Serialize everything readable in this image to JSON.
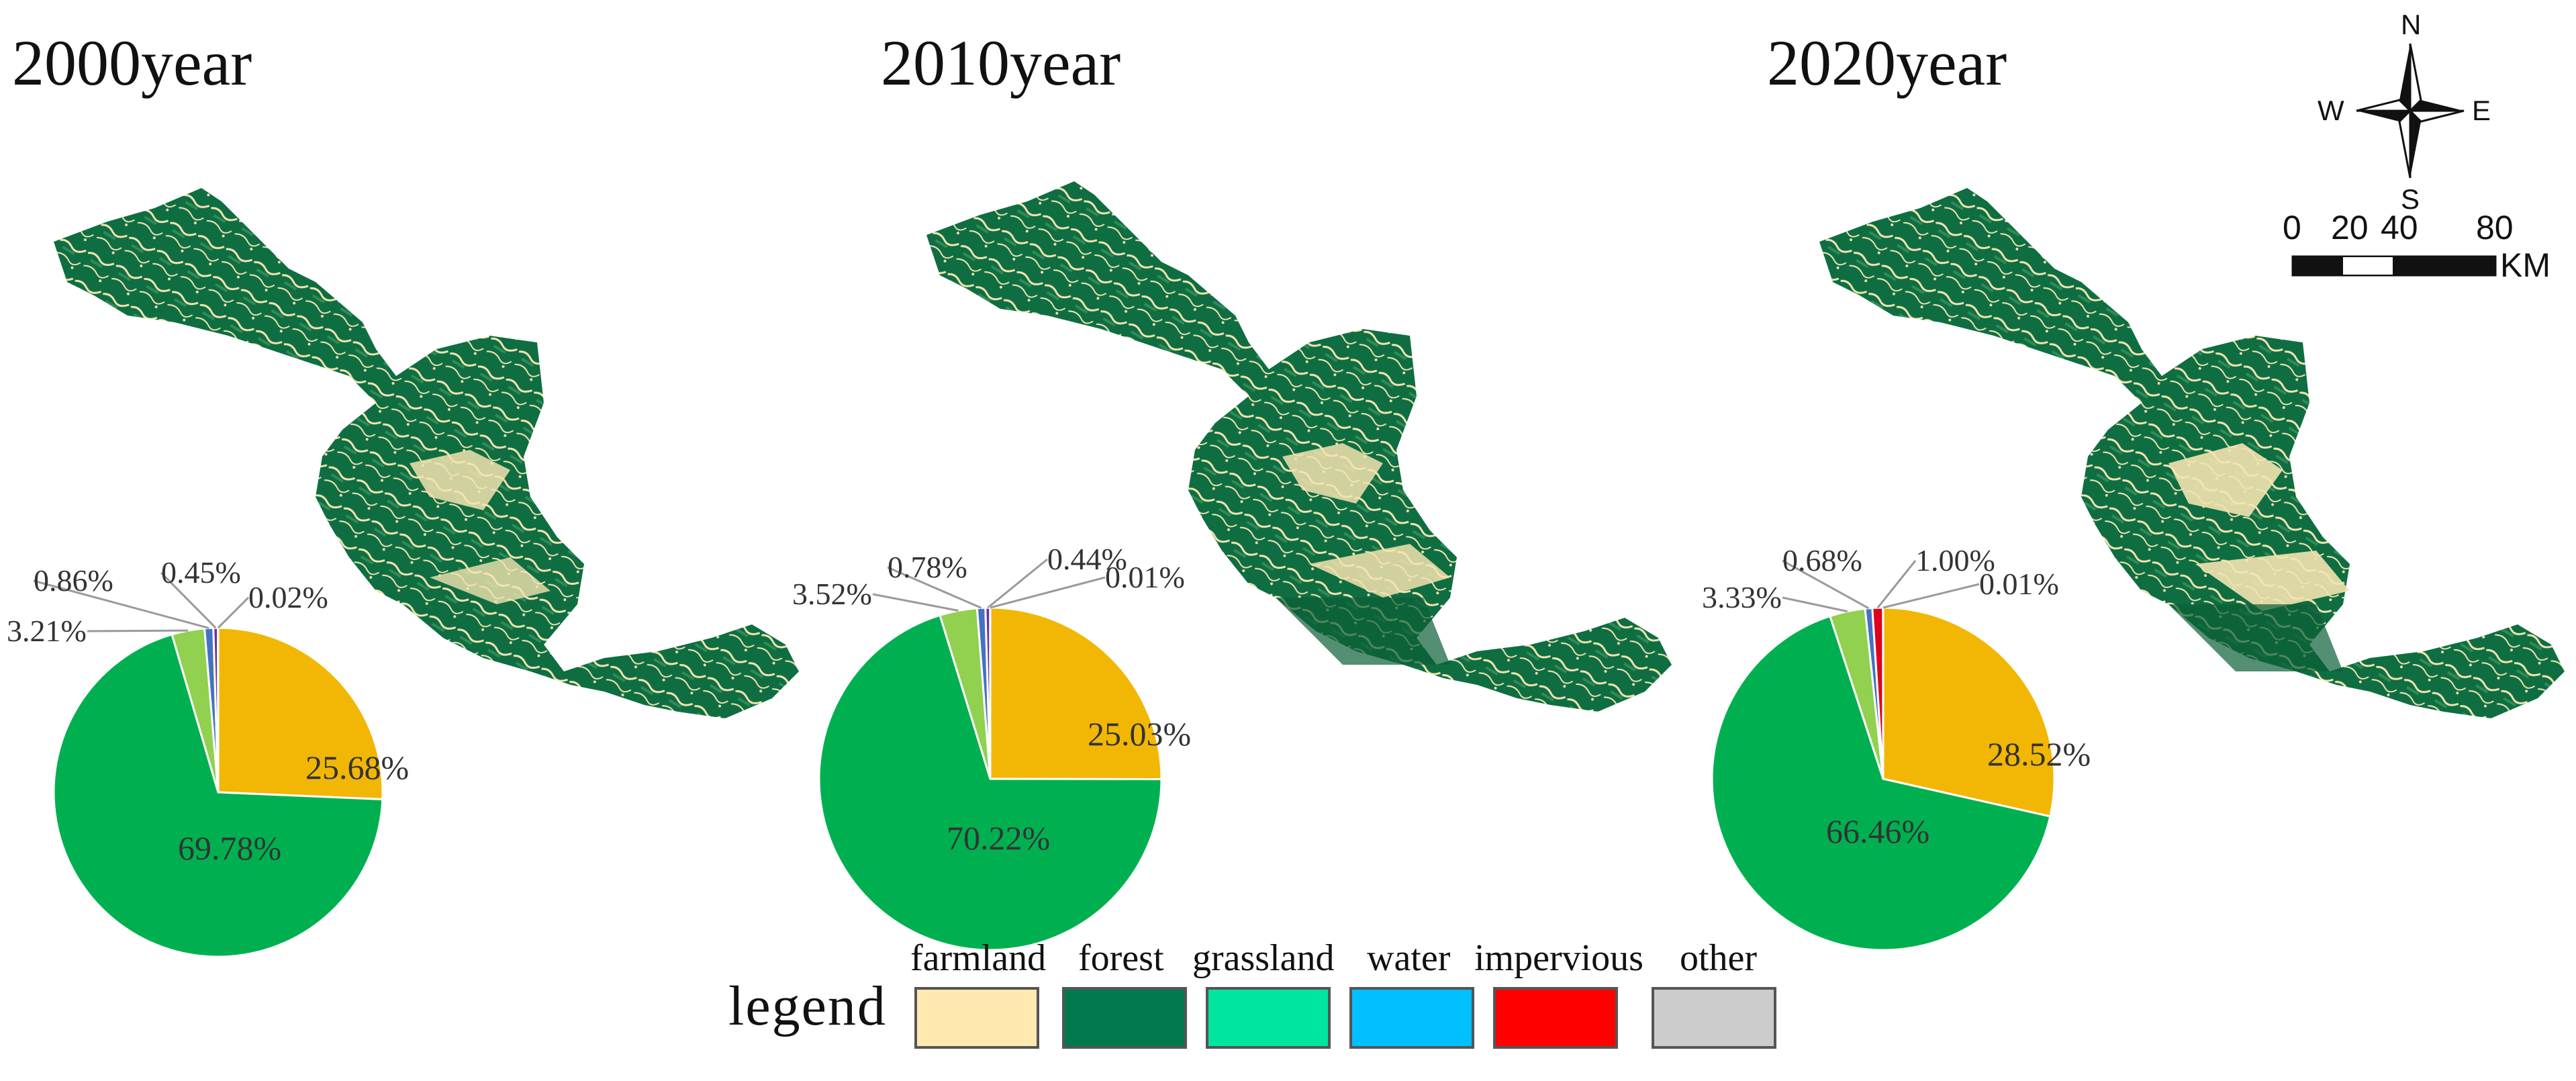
{
  "chart_data": [
    {
      "type": "pie",
      "title": "2000year",
      "slices": [
        {
          "category": "farmland",
          "value": 25.68,
          "label": "25.68%",
          "color": "#F2B705"
        },
        {
          "category": "forest",
          "value": 69.78,
          "label": "69.78%",
          "color": "#00B050"
        },
        {
          "category": "grassland",
          "value": 3.21,
          "label": "3.21%",
          "color": "#92D050"
        },
        {
          "category": "water",
          "value": 0.86,
          "label": "0.86%",
          "color": "#4472C4"
        },
        {
          "category": "impervious",
          "value": 0.45,
          "label": "0.45%",
          "color": "#7030A0"
        },
        {
          "category": "other",
          "value": 0.02,
          "label": "0.02%",
          "color": "#A5A5A5"
        }
      ]
    },
    {
      "type": "pie",
      "title": "2010year",
      "slices": [
        {
          "category": "farmland",
          "value": 25.03,
          "label": "25.03%",
          "color": "#F2B705"
        },
        {
          "category": "forest",
          "value": 70.22,
          "label": "70.22%",
          "color": "#00B050"
        },
        {
          "category": "grassland",
          "value": 3.52,
          "label": "3.52%",
          "color": "#92D050"
        },
        {
          "category": "water",
          "value": 0.78,
          "label": "0.78%",
          "color": "#4472C4"
        },
        {
          "category": "impervious",
          "value": 0.44,
          "label": "0.44%",
          "color": "#7030A0"
        },
        {
          "category": "other",
          "value": 0.01,
          "label": "0.01%",
          "color": "#A5A5A5"
        }
      ]
    },
    {
      "type": "pie",
      "title": "2020year",
      "slices": [
        {
          "category": "farmland",
          "value": 28.52,
          "label": "28.52%",
          "color": "#F2B705"
        },
        {
          "category": "forest",
          "value": 66.46,
          "label": "66.46%",
          "color": "#00B050"
        },
        {
          "category": "grassland",
          "value": 3.33,
          "label": "3.33%",
          "color": "#92D050"
        },
        {
          "category": "water",
          "value": 0.68,
          "label": "0.68%",
          "color": "#4472C4"
        },
        {
          "category": "impervious",
          "value": 1.0,
          "label": "1.00%",
          "color": "#E0001B"
        },
        {
          "category": "other",
          "value": 0.01,
          "label": "0.01%",
          "color": "#A5A5A5"
        }
      ]
    }
  ],
  "compass": {
    "north": "N",
    "south": "S",
    "east": "E",
    "west": "W"
  },
  "scale_bar": {
    "ticks": [
      "0",
      "20",
      "40",
      "80"
    ],
    "unit": "KM"
  },
  "legend": {
    "title": "legend",
    "items": [
      {
        "label": "farmland",
        "color": "#FFE9B0"
      },
      {
        "label": "forest",
        "color": "#007A4D"
      },
      {
        "label": "grassland",
        "color": "#00E5A0"
      },
      {
        "label": "water",
        "color": "#00C0FF"
      },
      {
        "label": "impervious",
        "color": "#FF0000"
      },
      {
        "label": "other",
        "color": "#CCCCCC"
      }
    ]
  },
  "map_colors": {
    "forest": "#0E6E42",
    "farmland": "#F3E3B0",
    "water": "#20B0E0"
  }
}
